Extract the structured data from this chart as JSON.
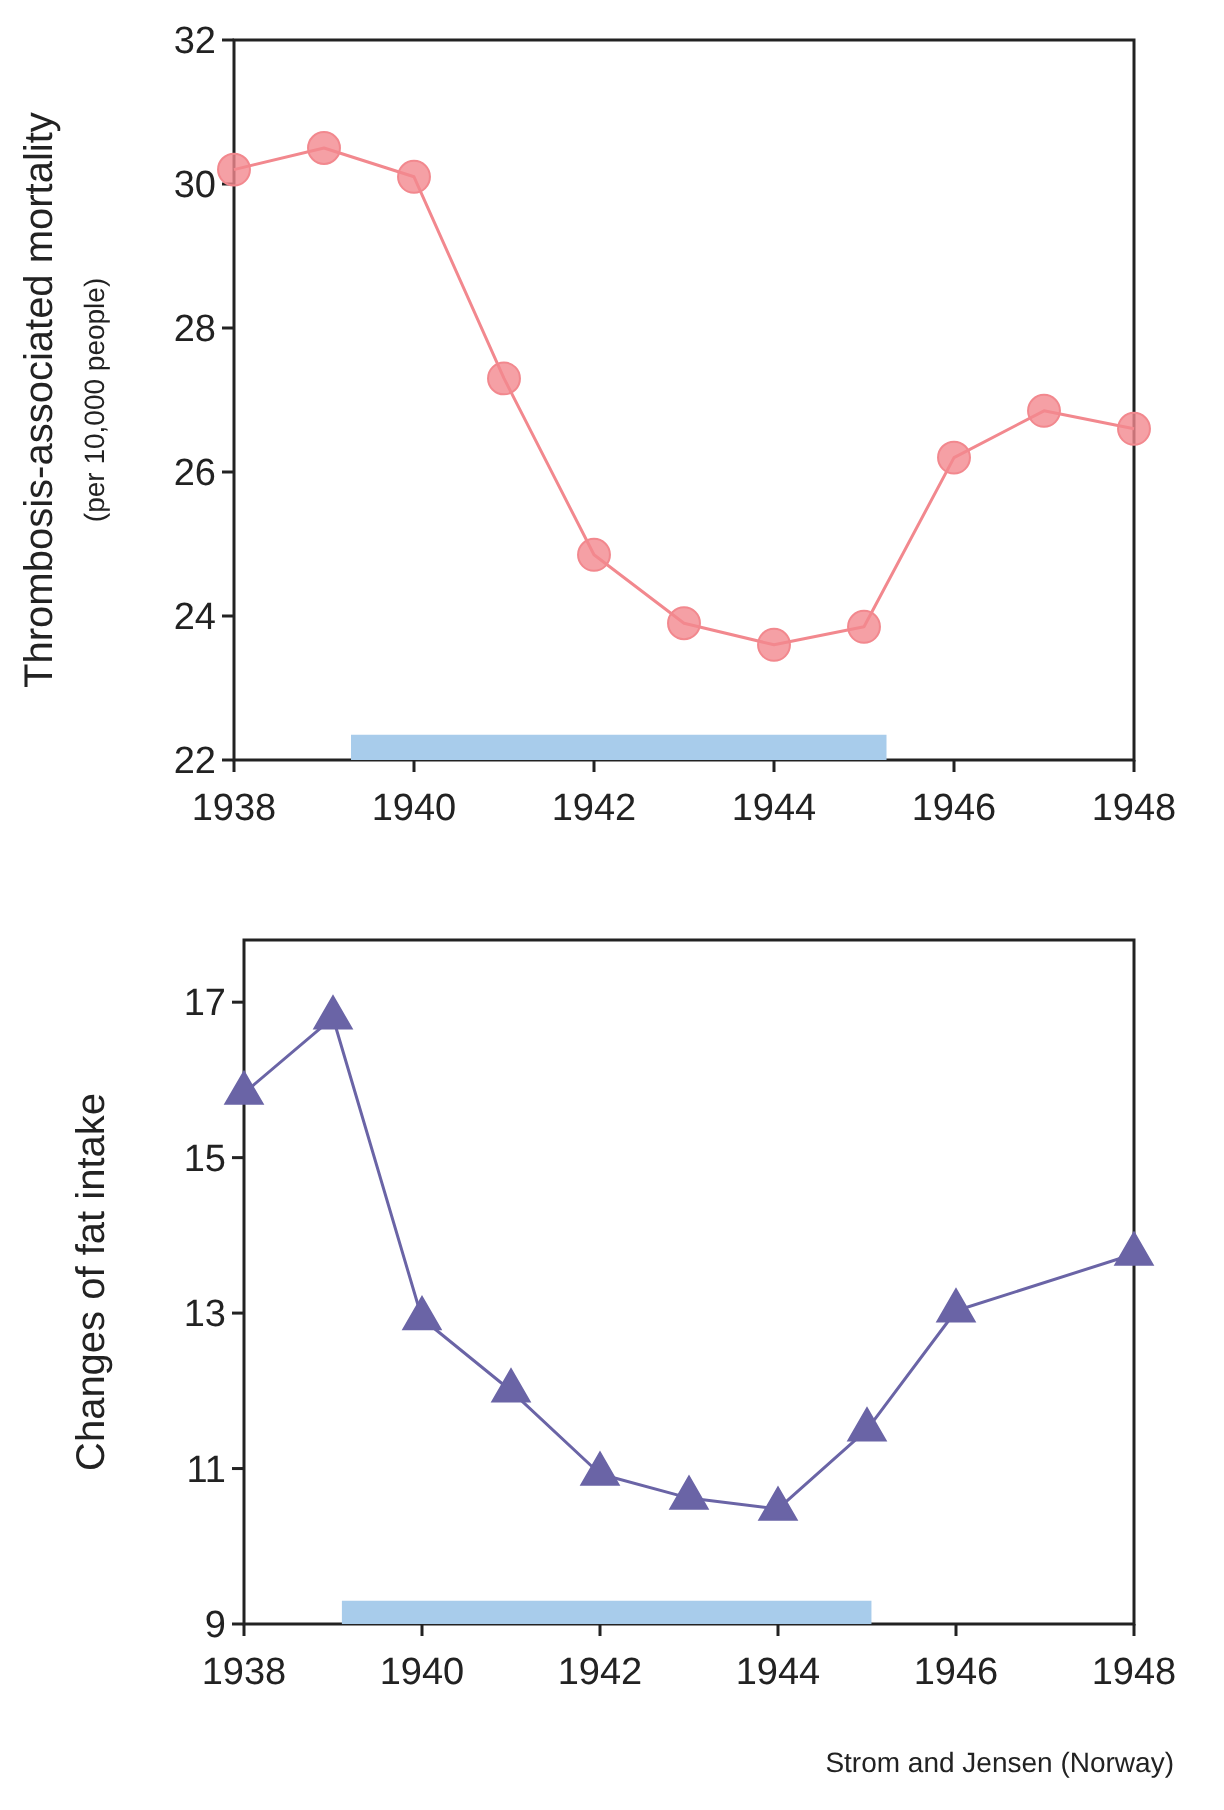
{
  "chart_data": [
    {
      "type": "line",
      "ylabel": "Thrombosis-associated mortality",
      "subtitle": "(per 10,000 people)",
      "x": [
        1938,
        1939,
        1940,
        1941,
        1942,
        1943,
        1944,
        1945,
        1946,
        1947,
        1948
      ],
      "series": [
        {
          "color": "#f2888e",
          "marker": "circle",
          "values": [
            30.2,
            30.5,
            30.1,
            27.3,
            24.85,
            23.9,
            23.6,
            23.85,
            26.2,
            26.85,
            26.6
          ]
        },
        {
          "type": "area",
          "color": "#a8cceb",
          "x": [
            1939.3,
            1945.25
          ],
          "values": [
            22.35,
            22.35
          ]
        }
      ],
      "xlim": [
        1938,
        1948
      ],
      "xticks": [
        1938,
        1940,
        1942,
        1944,
        1946,
        1948
      ],
      "ylim": [
        22,
        32
      ],
      "yticks": [
        22,
        24,
        26,
        28,
        30,
        32
      ],
      "grid": false
    },
    {
      "type": "line",
      "ylabel": "Changes of fat intake",
      "x": [
        1938,
        1939,
        1940,
        1941,
        1942,
        1943,
        1944,
        1945,
        1946,
        1948
      ],
      "series": [
        {
          "color": "#6a64a6",
          "marker": "triangle",
          "values": [
            15.83,
            16.8,
            12.93,
            12.0,
            10.93,
            10.62,
            10.48,
            11.5,
            13.03,
            13.76
          ]
        },
        {
          "type": "area",
          "color": "#a8cceb",
          "x": [
            1939.1,
            1945.05
          ],
          "values": [
            9.3,
            9.3
          ]
        }
      ],
      "xlim": [
        1938,
        1948
      ],
      "xticks": [
        1938,
        1940,
        1942,
        1944,
        1946,
        1948
      ],
      "ylim": [
        9,
        17.8
      ],
      "yticks": [
        9,
        11,
        13,
        15,
        17
      ],
      "grid": false,
      "annotations": [
        "Strom and Jensen (Norway)"
      ]
    }
  ]
}
